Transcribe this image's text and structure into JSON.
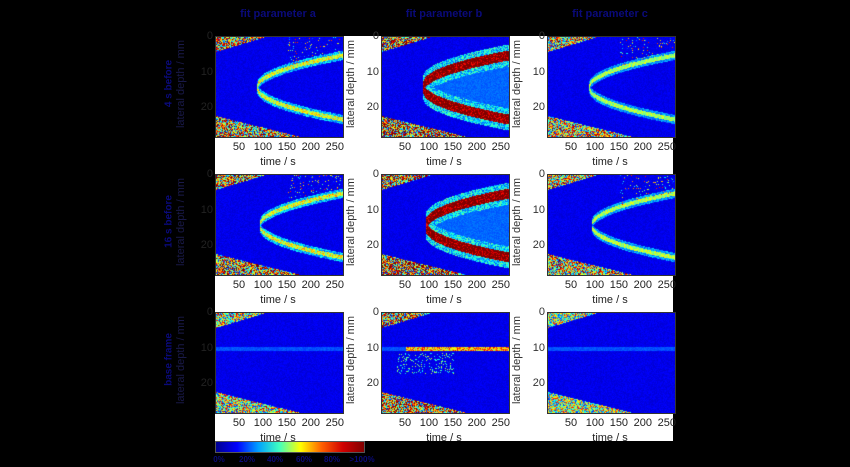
{
  "columns": [
    {
      "title": "fit parameter a"
    },
    {
      "title": "fit parameter b"
    },
    {
      "title": "fit parameter c"
    }
  ],
  "rows": [
    {
      "label": "4 s before"
    },
    {
      "label": "16 s before"
    },
    {
      "label": "base frame"
    }
  ],
  "axes": {
    "xlabel": "time / s",
    "ylabel": "lateral depth / mm",
    "xticks": [
      "50",
      "100",
      "150",
      "200",
      "250"
    ],
    "yticks": [
      "0",
      "10",
      "20"
    ]
  },
  "colorbar": {
    "labels": [
      "0%",
      "20%",
      "40%",
      "60%",
      "80%",
      ">100%"
    ],
    "colors": [
      "#00008f",
      "#0000ff",
      "#00a0ff",
      "#40ffbf",
      "#ffff00",
      "#ff6000",
      "#d00000",
      "#800000"
    ]
  },
  "chart_data": {
    "type": "heatmap",
    "title": "",
    "layout": "3x3 grid of heatmaps",
    "column_titles": [
      "fit parameter a",
      "fit parameter b",
      "fit parameter c"
    ],
    "row_titles": [
      "4 s before",
      "16 s before",
      "base frame"
    ],
    "xlabel": "time / s",
    "ylabel": "lateral depth / mm",
    "xlim": [
      0,
      265
    ],
    "ylim": [
      0,
      28
    ],
    "xticks": [
      50,
      100,
      150,
      200,
      250
    ],
    "yticks": [
      0,
      10,
      20
    ],
    "y_inverted": true,
    "colorbar": {
      "colormap": "jet",
      "range": [
        0,
        100
      ],
      "unit": "%",
      "ticks": [
        "0%",
        "20%",
        "40%",
        "60%",
        "80%",
        ">100%"
      ]
    },
    "panels": [
      {
        "row": 0,
        "col": 0,
        "feature": "parabolic front starting ~85 s at depth ~14 mm, sparse high values, noisy corners",
        "intensity": "medium"
      },
      {
        "row": 0,
        "col": 1,
        "feature": "strong parabolic front (red) starting ~85 s at depth ~14 mm, spreading to 5 and 23 mm at 260 s",
        "intensity": "high"
      },
      {
        "row": 0,
        "col": 2,
        "feature": "faint parabolic front, noisy corners",
        "intensity": "low"
      },
      {
        "row": 1,
        "col": 0,
        "feature": "thin parabolic front starting ~90 s at depth ~14 mm",
        "intensity": "medium"
      },
      {
        "row": 1,
        "col": 1,
        "feature": "strong thick parabolic front starting ~90 s",
        "intensity": "high"
      },
      {
        "row": 1,
        "col": 2,
        "feature": "faint thin parabolic front",
        "intensity": "low"
      },
      {
        "row": 2,
        "col": 0,
        "feature": "faint horizontal line at depth ~10 mm, bottom-left corner noise",
        "intensity": "low"
      },
      {
        "row": 2,
        "col": 1,
        "feature": "horizontal band at depth ~10 mm from ~50 s to 260 s, additional streaks at 13-17 mm",
        "intensity": "medium"
      },
      {
        "row": 2,
        "col": 2,
        "feature": "very faint horizontal line at ~10 mm, bottom-left corner noise",
        "intensity": "low"
      }
    ]
  }
}
